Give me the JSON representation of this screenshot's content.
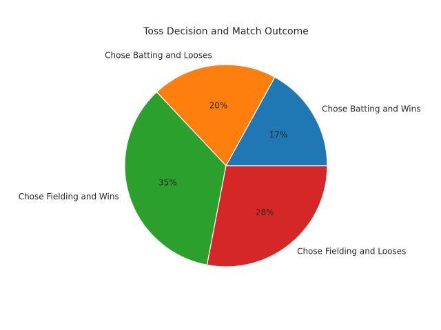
{
  "chart_data": {
    "type": "pie",
    "title": "Toss Decision and Match Outcome",
    "slices": [
      {
        "label": "Chose Batting and Wins",
        "value": 17,
        "pct_label": "17%",
        "color": "#1f77b4"
      },
      {
        "label": "Chose Batting and Looses",
        "value": 20,
        "pct_label": "20%",
        "color": "#ff7f0e"
      },
      {
        "label": "Chose Fielding and Wins",
        "value": 35,
        "pct_label": "35%",
        "color": "#2ca02c"
      },
      {
        "label": "Chose Fielding and Looses",
        "value": 28,
        "pct_label": "28%",
        "color": "#d62728"
      }
    ],
    "start_angle_deg": 0,
    "direction": "counterclockwise",
    "legend": "none"
  }
}
